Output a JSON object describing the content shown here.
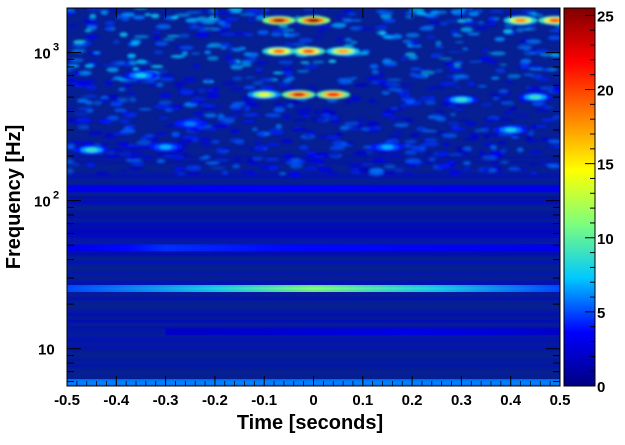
{
  "chart_data": {
    "type": "heatmap",
    "title": "",
    "xlabel": "Time [seconds]",
    "ylabel": "Frequency [Hz]",
    "x_range": [
      -0.5,
      0.5
    ],
    "y_range": [
      5.6,
      2000
    ],
    "y_scale": "log",
    "x_ticks": [
      -0.5,
      -0.4,
      -0.3,
      -0.2,
      -0.1,
      0,
      0.1,
      0.2,
      0.3,
      0.4,
      0.5
    ],
    "x_tick_labels": [
      "-0.5",
      "-0.4",
      "-0.3",
      "-0.2",
      "-0.1",
      "0",
      "0.1",
      "0.2",
      "0.3",
      "0.4",
      "0.5"
    ],
    "y_ticks": [
      10,
      100,
      1000
    ],
    "y_tick_labels": [
      "10",
      "10",
      "10"
    ],
    "y_tick_exponents": [
      "",
      "2",
      "3"
    ],
    "colorbar": {
      "range": [
        0,
        25.5
      ],
      "ticks": [
        0,
        5,
        10,
        15,
        20,
        25
      ],
      "tick_labels": [
        "0",
        "5",
        "10",
        "15",
        "20",
        "25"
      ],
      "colors": [
        "#000080",
        "#0000ff",
        "#00c8ff",
        "#7dff7d",
        "#ffff00",
        "#ff8000",
        "#ff0000",
        "#800000"
      ]
    },
    "background_color": "#061f93",
    "features": [
      {
        "kind": "band",
        "freq": 25.5,
        "t_start": -0.5,
        "t_end": 0.5,
        "peak_t": 0.0,
        "peak": 11,
        "edge": 5
      },
      {
        "kind": "band",
        "freq": 48,
        "t_start": -0.5,
        "t_end": 0.5,
        "peak_t": -0.3,
        "peak": 4.5,
        "edge": 3
      },
      {
        "kind": "band",
        "freq": 120,
        "t_start": -0.5,
        "t_end": 0.5,
        "peak_t": -0.1,
        "peak": 3.5,
        "edge": 3
      },
      {
        "kind": "band",
        "freq": 13,
        "t_start": -0.3,
        "t_end": 0.5,
        "peak_t": 0.2,
        "peak": 3,
        "edge": 2
      },
      {
        "kind": "band",
        "freq": 5.9,
        "t_start": -0.5,
        "t_end": 0.5,
        "peak_t": 0.0,
        "peak": 6,
        "edge": 6
      },
      {
        "kind": "blob",
        "t": -0.07,
        "freq": 1650,
        "value": 24
      },
      {
        "kind": "blob",
        "t": 0.0,
        "freq": 1650,
        "value": 25
      },
      {
        "kind": "blob",
        "t": 0.42,
        "freq": 1650,
        "value": 18
      },
      {
        "kind": "blob",
        "t": 0.49,
        "freq": 1650,
        "value": 20
      },
      {
        "kind": "blob",
        "t": -0.07,
        "freq": 1020,
        "value": 19
      },
      {
        "kind": "blob",
        "t": -0.01,
        "freq": 1020,
        "value": 20
      },
      {
        "kind": "blob",
        "t": 0.06,
        "freq": 1020,
        "value": 17
      },
      {
        "kind": "blob",
        "t": -0.1,
        "freq": 520,
        "value": 14
      },
      {
        "kind": "blob",
        "t": -0.03,
        "freq": 520,
        "value": 23
      },
      {
        "kind": "blob",
        "t": 0.04,
        "freq": 520,
        "value": 22
      },
      {
        "kind": "blob",
        "t": -0.45,
        "freq": 220,
        "value": 9
      },
      {
        "kind": "blob",
        "t": -0.3,
        "freq": 230,
        "value": 7
      },
      {
        "kind": "blob",
        "t": 0.15,
        "freq": 230,
        "value": 7
      },
      {
        "kind": "blob",
        "t": 0.4,
        "freq": 300,
        "value": 8
      },
      {
        "kind": "blob",
        "t": -0.25,
        "freq": 330,
        "value": 6
      },
      {
        "kind": "blob",
        "t": 0.3,
        "freq": 480,
        "value": 9
      },
      {
        "kind": "blob",
        "t": -0.35,
        "freq": 700,
        "value": 8
      },
      {
        "kind": "blob",
        "t": 0.45,
        "freq": 500,
        "value": 9
      }
    ]
  }
}
